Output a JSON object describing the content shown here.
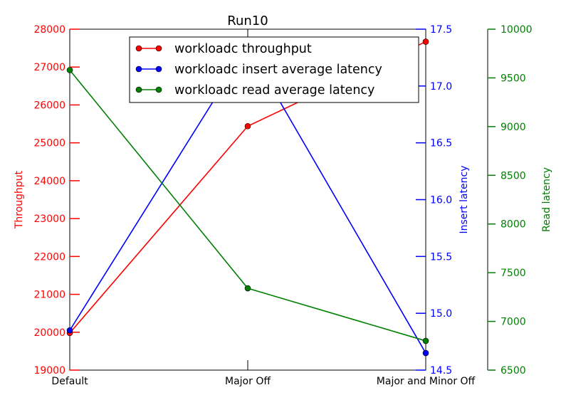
{
  "chart_data": {
    "type": "line",
    "title": "Run10",
    "categories": [
      "Default",
      "Major Off",
      "Major and Minor Off"
    ],
    "axes": {
      "left": {
        "label": "Throughput",
        "color": "#ff0000",
        "ylim": [
          19000,
          28000
        ],
        "ticks": [
          "19000",
          "20000",
          "21000",
          "22000",
          "23000",
          "24000",
          "25000",
          "26000",
          "27000",
          "28000"
        ]
      },
      "right1": {
        "label": "Insert latency",
        "color": "#0000ff",
        "ylim": [
          14.5,
          17.5
        ],
        "ticks": [
          "14.5",
          "15.0",
          "15.5",
          "16.0",
          "16.5",
          "17.0",
          "17.5"
        ]
      },
      "right2": {
        "label": "Read latency",
        "color": "#008000",
        "ylim": [
          6500,
          10000
        ],
        "ticks": [
          "6500",
          "7000",
          "7500",
          "8000",
          "8500",
          "9000",
          "9500",
          "10000"
        ]
      }
    },
    "series": [
      {
        "name": "workloadc throughput",
        "axis": "left",
        "color": "#ff0000",
        "values": [
          19980,
          25440,
          27670
        ]
      },
      {
        "name": "workloadc insert average latency",
        "axis": "right1",
        "color": "#0000ff",
        "values": [
          14.85,
          17.35,
          14.65
        ]
      },
      {
        "name": "workloadc read average latency",
        "axis": "right2",
        "color": "#008000",
        "values": [
          9580,
          7340,
          6800
        ]
      }
    ],
    "legend": "top-center",
    "grid": false
  }
}
